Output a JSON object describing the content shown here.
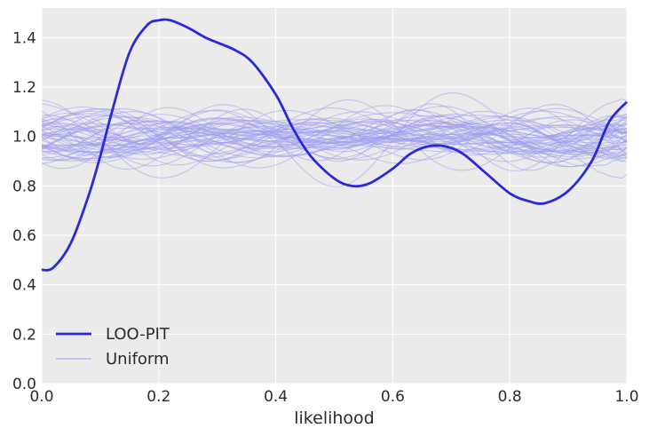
{
  "chart_data": {
    "type": "line",
    "xlabel": "likelihood",
    "ylabel": "",
    "xlim": [
      0.0,
      1.0
    ],
    "ylim": [
      0.0,
      1.52
    ],
    "xticks": [
      0.0,
      0.2,
      0.4,
      0.6,
      0.8,
      1.0
    ],
    "xtick_labels": [
      "0.0",
      "0.2",
      "0.4",
      "0.6",
      "0.8",
      "1.0"
    ],
    "yticks": [
      0.0,
      0.2,
      0.4,
      0.6,
      0.8,
      1.0,
      1.2,
      1.4
    ],
    "ytick_labels": [
      "0.0",
      "0.2",
      "0.4",
      "0.6",
      "0.8",
      "1.0",
      "1.2",
      "1.4"
    ],
    "grid": true,
    "legend_placement": "lower-left",
    "colors": {
      "background": "#ebebeb",
      "grid": "#ffffff",
      "loo_pit": "#2a2ad8",
      "uniform": "#9c9cf0"
    },
    "series": [
      {
        "name": "LOO-PIT",
        "x": [
          0.0,
          0.02,
          0.05,
          0.08,
          0.1,
          0.12,
          0.15,
          0.18,
          0.2,
          0.22,
          0.25,
          0.28,
          0.3,
          0.33,
          0.36,
          0.4,
          0.43,
          0.46,
          0.5,
          0.53,
          0.56,
          0.6,
          0.63,
          0.66,
          0.69,
          0.72,
          0.76,
          0.8,
          0.83,
          0.86,
          0.9,
          0.94,
          0.97,
          1.0
        ],
        "y": [
          0.46,
          0.47,
          0.57,
          0.76,
          0.92,
          1.1,
          1.34,
          1.45,
          1.47,
          1.47,
          1.44,
          1.4,
          1.38,
          1.35,
          1.3,
          1.17,
          1.03,
          0.92,
          0.83,
          0.8,
          0.81,
          0.87,
          0.93,
          0.96,
          0.96,
          0.93,
          0.85,
          0.77,
          0.74,
          0.73,
          0.78,
          0.9,
          1.06,
          1.14
        ]
      },
      {
        "name": "Uniform",
        "note_count": 60,
        "mean": 1.0,
        "spread": 0.12
      }
    ]
  }
}
